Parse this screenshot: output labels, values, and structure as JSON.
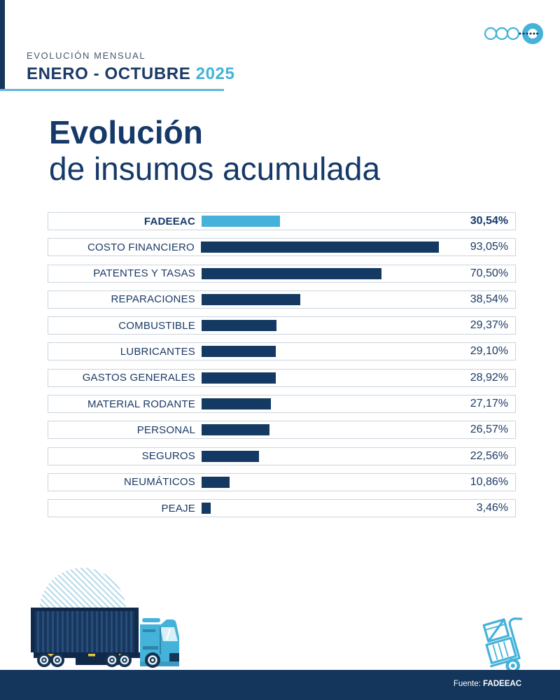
{
  "header": {
    "eyebrow": "EVOLUCIÓN MENSUAL",
    "period": "ENERO - OCTUBRE",
    "year": "2025"
  },
  "title": {
    "line1": "Evolución",
    "line2": "de insumos acumulada"
  },
  "chart_data": {
    "type": "bar",
    "orientation": "horizontal",
    "title": "Evolución de insumos acumulada",
    "categories": [
      "FADEEAC",
      "COSTO FINANCIERO",
      "PATENTES Y TASAS",
      "REPARACIONES",
      "COMBUSTIBLE",
      "LUBRICANTES",
      "GASTOS GENERALES",
      "MATERIAL RODANTE",
      "PERSONAL",
      "SEGUROS",
      "NEUMÁTICOS",
      "PEAJE"
    ],
    "values": [
      30.54,
      93.05,
      70.5,
      38.54,
      29.37,
      29.1,
      28.92,
      27.17,
      26.57,
      22.56,
      10.86,
      3.46
    ],
    "value_labels": [
      "30,54%",
      "93,05%",
      "70,50%",
      "38,54%",
      "29,37%",
      "29,10%",
      "28,92%",
      "27,17%",
      "26,57%",
      "22,56%",
      "10,86%",
      "3,46%"
    ],
    "highlight_category": "FADEEAC",
    "xlim": [
      0,
      100
    ],
    "grid": false,
    "legend": false,
    "colors": {
      "highlight_bar": "#45B2D9",
      "bar": "#143A63",
      "row_border": "#CBD4DC",
      "label_text": "#1B3A66"
    }
  },
  "footer": {
    "source_prefix": "Fuente:",
    "source_name": "FADEEAC"
  },
  "brand_colors": {
    "navy": "#14365C",
    "light_blue": "#45B2D9",
    "underline_blue": "#63B5DC",
    "stripe_blue": "#A9D6EA",
    "chassis_yellow": "#E9C53B"
  },
  "decor": {
    "top_right_icon": "three-circles-dotted-ring-motif",
    "bottom_left_illustration": "container-truck",
    "bottom_right_icon": "hand-truck-with-crates"
  }
}
